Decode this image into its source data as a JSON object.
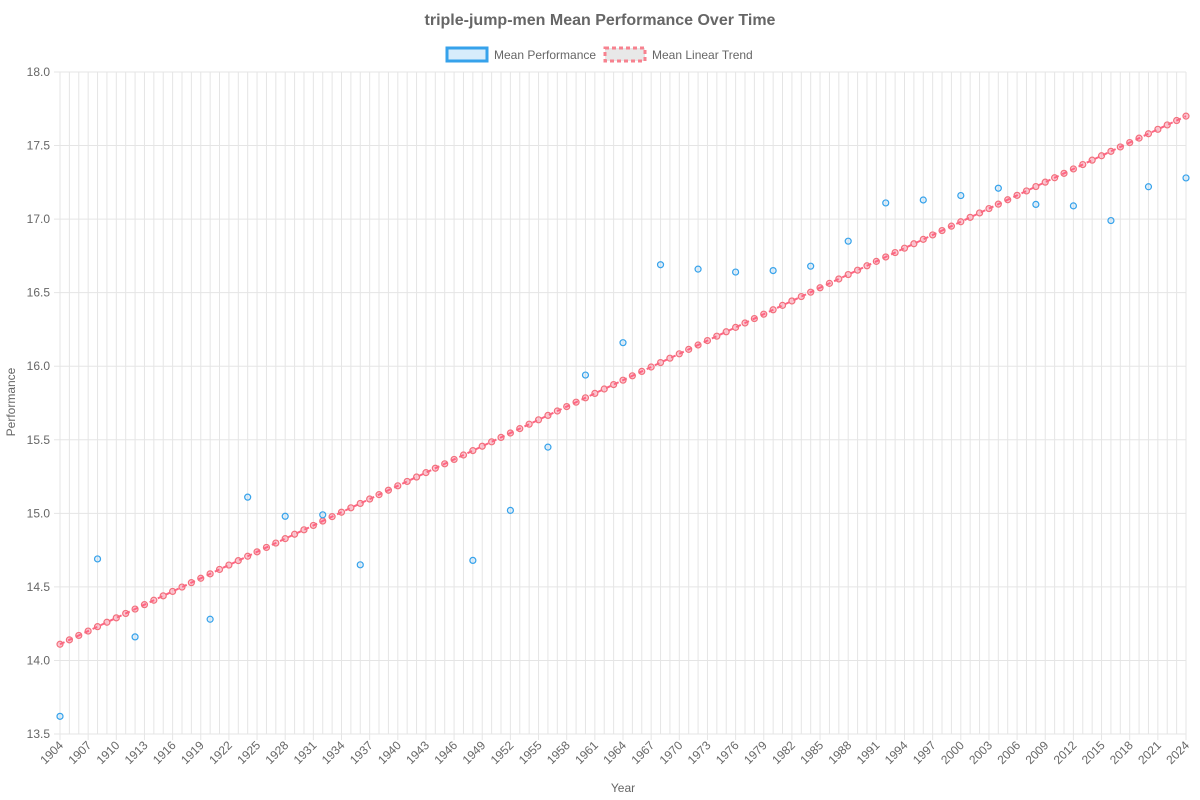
{
  "chart_data": {
    "type": "scatter",
    "title": "triple-jump-men Mean Performance Over Time",
    "xlabel": "Year",
    "ylabel": "Performance",
    "xlim": [
      1904,
      2024
    ],
    "ylim": [
      13.5,
      18.0
    ],
    "y_ticks": [
      "13.5",
      "14.0",
      "14.5",
      "15.0",
      "15.5",
      "16.0",
      "16.5",
      "17.0",
      "17.5",
      "18.0"
    ],
    "x_ticks": [
      "1904",
      "1907",
      "1910",
      "1913",
      "1916",
      "1919",
      "1922",
      "1925",
      "1928",
      "1931",
      "1934",
      "1937",
      "1940",
      "1943",
      "1946",
      "1949",
      "1952",
      "1955",
      "1958",
      "1961",
      "1964",
      "1967",
      "1970",
      "1973",
      "1976",
      "1979",
      "1982",
      "1985",
      "1988",
      "1991",
      "1994",
      "1997",
      "2000",
      "2003",
      "2006",
      "2009",
      "2012",
      "2015",
      "2018",
      "2021",
      "2024"
    ],
    "grid": true,
    "legend_position": "top",
    "series": [
      {
        "name": "Mean Performance",
        "kind": "scatter",
        "color": "#36a2eb",
        "points": [
          {
            "x": 1904,
            "y": 13.62
          },
          {
            "x": 1908,
            "y": 14.69
          },
          {
            "x": 1912,
            "y": 14.16
          },
          {
            "x": 1920,
            "y": 14.28
          },
          {
            "x": 1924,
            "y": 15.11
          },
          {
            "x": 1928,
            "y": 14.98
          },
          {
            "x": 1932,
            "y": 14.99
          },
          {
            "x": 1936,
            "y": 14.65
          },
          {
            "x": 1948,
            "y": 14.68
          },
          {
            "x": 1952,
            "y": 15.02
          },
          {
            "x": 1956,
            "y": 15.45
          },
          {
            "x": 1960,
            "y": 15.94
          },
          {
            "x": 1964,
            "y": 16.16
          },
          {
            "x": 1968,
            "y": 16.69
          },
          {
            "x": 1972,
            "y": 16.66
          },
          {
            "x": 1976,
            "y": 16.64
          },
          {
            "x": 1980,
            "y": 16.65
          },
          {
            "x": 1984,
            "y": 16.68
          },
          {
            "x": 1988,
            "y": 16.85
          },
          {
            "x": 1992,
            "y": 17.11
          },
          {
            "x": 1996,
            "y": 17.13
          },
          {
            "x": 2000,
            "y": 17.16
          },
          {
            "x": 2004,
            "y": 17.21
          },
          {
            "x": 2008,
            "y": 17.1
          },
          {
            "x": 2012,
            "y": 17.09
          },
          {
            "x": 2016,
            "y": 16.99
          },
          {
            "x": 2020,
            "y": 17.22
          },
          {
            "x": 2024,
            "y": 17.28
          }
        ]
      },
      {
        "name": "Mean Linear Trend",
        "kind": "line",
        "color": "#ff6384",
        "start": {
          "x": 1904,
          "y": 14.11
        },
        "end": {
          "x": 2024,
          "y": 17.7
        },
        "step": 1
      }
    ]
  }
}
